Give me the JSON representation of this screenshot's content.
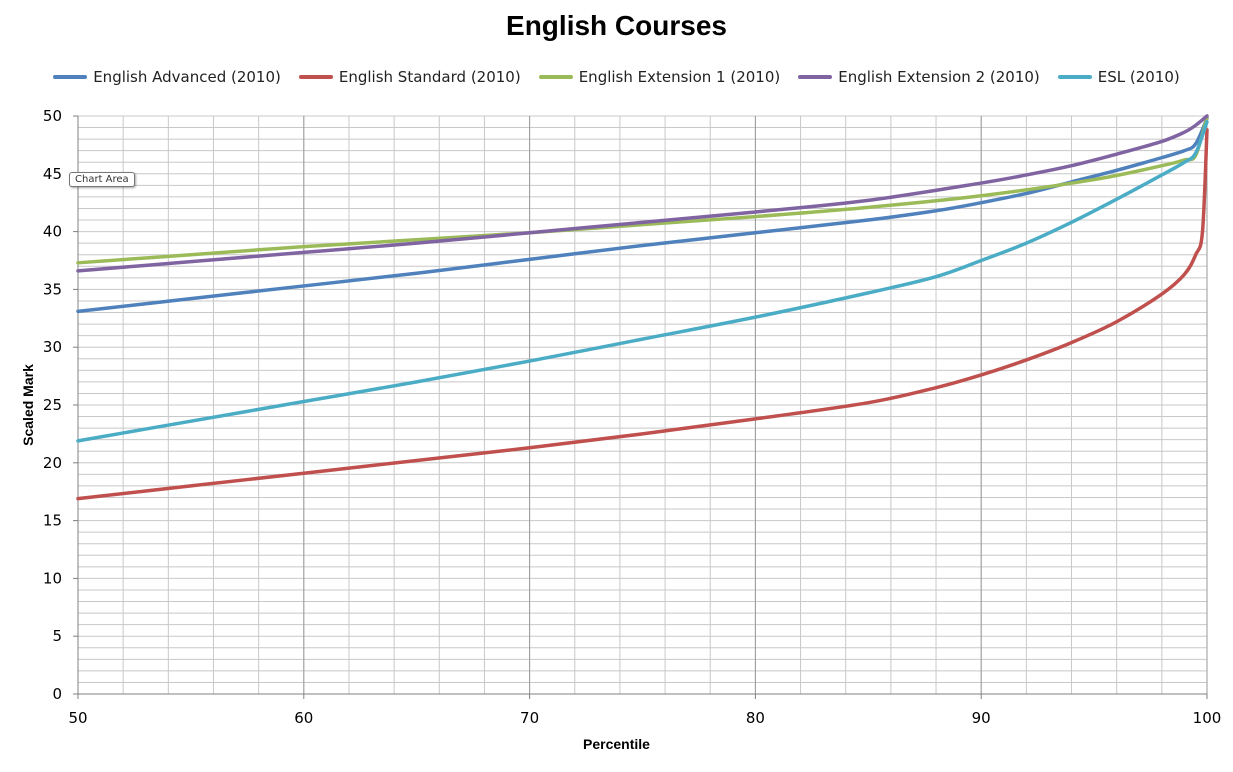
{
  "tooltip": "Chart Area",
  "chart_data": {
    "type": "line",
    "title": "English Courses",
    "xlabel": "Percentile",
    "ylabel": "Scaled Mark",
    "xlim": [
      50,
      100
    ],
    "ylim": [
      0,
      50
    ],
    "x_major_ticks": [
      "50",
      "60",
      "70",
      "80",
      "90",
      "100"
    ],
    "y_major_ticks": [
      "0",
      "5",
      "10",
      "15",
      "20",
      "25",
      "30",
      "35",
      "40",
      "45",
      "50"
    ],
    "x_minor_step": 2,
    "y_minor_step": 1,
    "grid": true,
    "legend_position": "top",
    "series": [
      {
        "name": "English Advanced (2010)",
        "color": "#4F81BD",
        "points": [
          [
            50,
            33.1
          ],
          [
            55,
            34.2
          ],
          [
            60,
            35.3
          ],
          [
            65,
            36.4
          ],
          [
            70,
            37.6
          ],
          [
            75,
            38.8
          ],
          [
            80,
            39.9
          ],
          [
            85,
            41.0
          ],
          [
            88,
            41.8
          ],
          [
            90,
            42.5
          ],
          [
            92,
            43.3
          ],
          [
            94,
            44.3
          ],
          [
            96,
            45.3
          ],
          [
            98,
            46.4
          ],
          [
            99,
            47.0
          ],
          [
            99.5,
            47.6
          ],
          [
            100,
            49.8
          ]
        ]
      },
      {
        "name": "English Standard (2010)",
        "color": "#C0504D",
        "points": [
          [
            50,
            16.9
          ],
          [
            55,
            18.0
          ],
          [
            60,
            19.1
          ],
          [
            65,
            20.2
          ],
          [
            70,
            21.3
          ],
          [
            75,
            22.5
          ],
          [
            80,
            23.8
          ],
          [
            85,
            25.2
          ],
          [
            88,
            26.5
          ],
          [
            90,
            27.6
          ],
          [
            92,
            28.9
          ],
          [
            94,
            30.4
          ],
          [
            96,
            32.2
          ],
          [
            98,
            34.6
          ],
          [
            99,
            36.3
          ],
          [
            99.5,
            38.0
          ],
          [
            99.8,
            40.0
          ],
          [
            100,
            48.8
          ]
        ]
      },
      {
        "name": "English Extension 1 (2010)",
        "color": "#9BBB59",
        "points": [
          [
            50,
            37.3
          ],
          [
            55,
            38.0
          ],
          [
            60,
            38.7
          ],
          [
            65,
            39.3
          ],
          [
            70,
            39.9
          ],
          [
            75,
            40.6
          ],
          [
            80,
            41.3
          ],
          [
            85,
            42.1
          ],
          [
            90,
            43.1
          ],
          [
            95,
            44.5
          ],
          [
            98,
            45.7
          ],
          [
            99,
            46.2
          ],
          [
            99.5,
            46.6
          ],
          [
            100,
            49.9
          ]
        ]
      },
      {
        "name": "English Extension 2 (2010)",
        "color": "#8064A2",
        "points": [
          [
            50,
            36.6
          ],
          [
            55,
            37.4
          ],
          [
            60,
            38.2
          ],
          [
            65,
            39.0
          ],
          [
            70,
            39.9
          ],
          [
            75,
            40.8
          ],
          [
            80,
            41.7
          ],
          [
            85,
            42.7
          ],
          [
            90,
            44.2
          ],
          [
            92,
            44.9
          ],
          [
            94,
            45.7
          ],
          [
            96,
            46.7
          ],
          [
            98,
            47.8
          ],
          [
            99,
            48.6
          ],
          [
            99.5,
            49.2
          ],
          [
            100,
            50.0
          ]
        ]
      },
      {
        "name": "ESL (2010)",
        "color": "#4BACC6",
        "points": [
          [
            50,
            21.9
          ],
          [
            55,
            23.6
          ],
          [
            60,
            25.3
          ],
          [
            65,
            27.0
          ],
          [
            70,
            28.8
          ],
          [
            75,
            30.7
          ],
          [
            80,
            32.6
          ],
          [
            85,
            34.7
          ],
          [
            88,
            36.1
          ],
          [
            90,
            37.5
          ],
          [
            92,
            39.0
          ],
          [
            94,
            40.8
          ],
          [
            96,
            42.8
          ],
          [
            98,
            44.9
          ],
          [
            99,
            46.0
          ],
          [
            99.5,
            46.8
          ],
          [
            100,
            49.5
          ]
        ]
      }
    ]
  }
}
